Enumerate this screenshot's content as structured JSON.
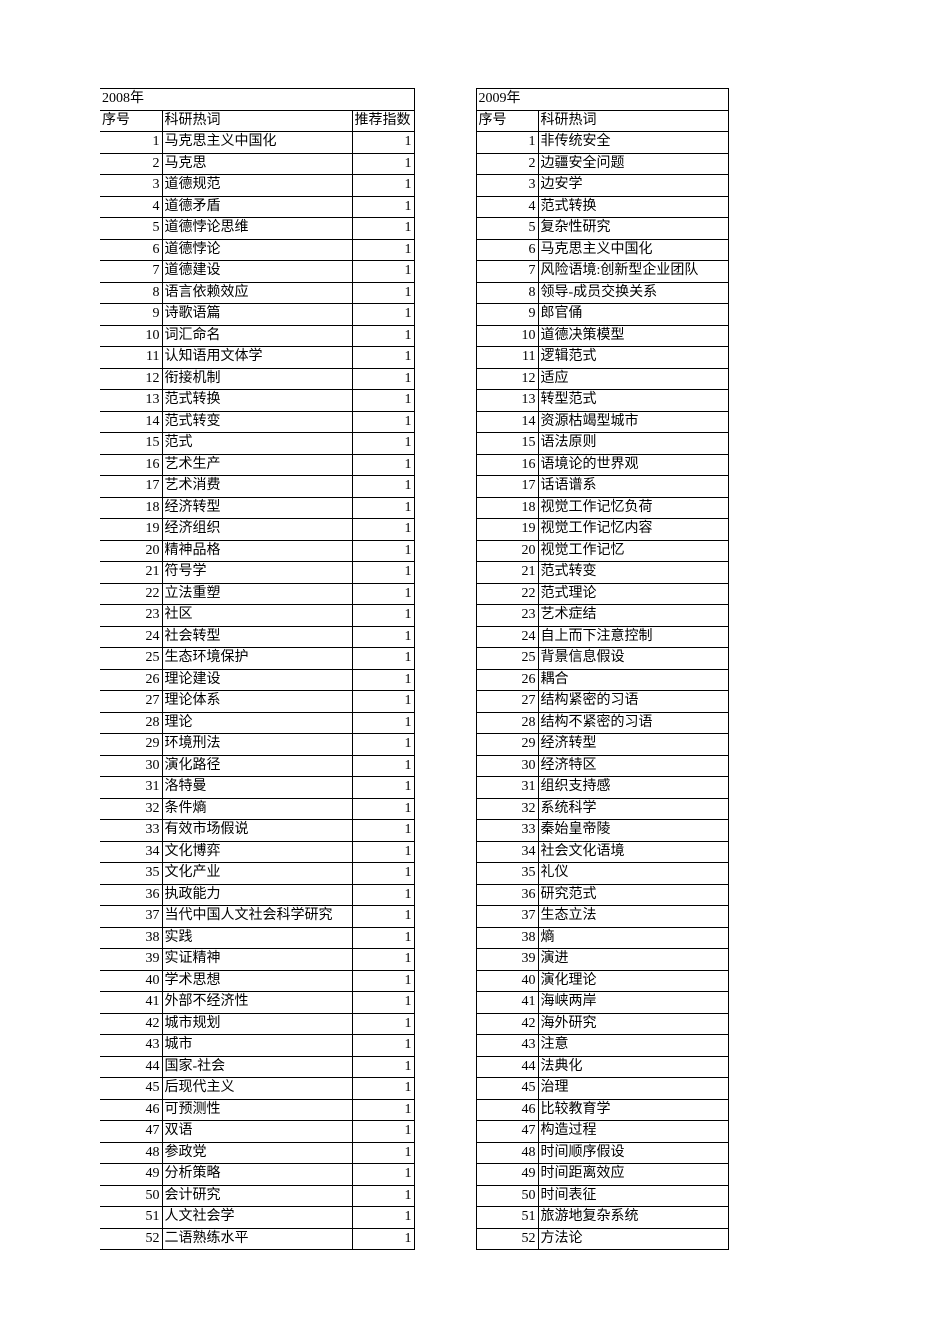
{
  "left": {
    "year": "2008年",
    "headers": {
      "seq": "序号",
      "term": "科研热词",
      "score": "推荐指数"
    },
    "rows": [
      {
        "n": "1",
        "t": "马克思主义中国化",
        "s": "1"
      },
      {
        "n": "2",
        "t": "马克思",
        "s": "1"
      },
      {
        "n": "3",
        "t": "道德规范",
        "s": "1"
      },
      {
        "n": "4",
        "t": "道德矛盾",
        "s": "1"
      },
      {
        "n": "5",
        "t": "道德悖论思维",
        "s": "1"
      },
      {
        "n": "6",
        "t": "道德悖论",
        "s": "1"
      },
      {
        "n": "7",
        "t": "道德建设",
        "s": "1"
      },
      {
        "n": "8",
        "t": "语言依赖效应",
        "s": "1"
      },
      {
        "n": "9",
        "t": "诗歌语篇",
        "s": "1"
      },
      {
        "n": "10",
        "t": "词汇命名",
        "s": "1"
      },
      {
        "n": "11",
        "t": "认知语用文体学",
        "s": "1"
      },
      {
        "n": "12",
        "t": "衔接机制",
        "s": "1"
      },
      {
        "n": "13",
        "t": "范式转换",
        "s": "1"
      },
      {
        "n": "14",
        "t": "范式转变",
        "s": "1"
      },
      {
        "n": "15",
        "t": "范式",
        "s": "1"
      },
      {
        "n": "16",
        "t": "艺术生产",
        "s": "1"
      },
      {
        "n": "17",
        "t": "艺术消费",
        "s": "1"
      },
      {
        "n": "18",
        "t": "经济转型",
        "s": "1"
      },
      {
        "n": "19",
        "t": "经济组织",
        "s": "1"
      },
      {
        "n": "20",
        "t": "精神品格",
        "s": "1"
      },
      {
        "n": "21",
        "t": "符号学",
        "s": "1"
      },
      {
        "n": "22",
        "t": "立法重塑",
        "s": "1"
      },
      {
        "n": "23",
        "t": "社区",
        "s": "1"
      },
      {
        "n": "24",
        "t": "社会转型",
        "s": "1"
      },
      {
        "n": "25",
        "t": "生态环境保护",
        "s": "1"
      },
      {
        "n": "26",
        "t": "理论建设",
        "s": "1"
      },
      {
        "n": "27",
        "t": "理论体系",
        "s": "1"
      },
      {
        "n": "28",
        "t": "理论",
        "s": "1"
      },
      {
        "n": "29",
        "t": "环境刑法",
        "s": "1"
      },
      {
        "n": "30",
        "t": "演化路径",
        "s": "1"
      },
      {
        "n": "31",
        "t": "洛特曼",
        "s": "1"
      },
      {
        "n": "32",
        "t": "条件熵",
        "s": "1"
      },
      {
        "n": "33",
        "t": "有效市场假说",
        "s": "1"
      },
      {
        "n": "34",
        "t": "文化博弈",
        "s": "1"
      },
      {
        "n": "35",
        "t": "文化产业",
        "s": "1"
      },
      {
        "n": "36",
        "t": "执政能力",
        "s": "1"
      },
      {
        "n": "37",
        "t": "当代中国人文社会科学研究",
        "s": "1"
      },
      {
        "n": "38",
        "t": "实践",
        "s": "1"
      },
      {
        "n": "39",
        "t": "实证精神",
        "s": "1"
      },
      {
        "n": "40",
        "t": "学术思想",
        "s": "1"
      },
      {
        "n": "41",
        "t": "外部不经济性",
        "s": "1"
      },
      {
        "n": "42",
        "t": "城市规划",
        "s": "1"
      },
      {
        "n": "43",
        "t": "城市",
        "s": "1"
      },
      {
        "n": "44",
        "t": "国家-社会",
        "s": "1"
      },
      {
        "n": "45",
        "t": "后现代主义",
        "s": "1"
      },
      {
        "n": "46",
        "t": "可预测性",
        "s": "1"
      },
      {
        "n": "47",
        "t": "双语",
        "s": "1"
      },
      {
        "n": "48",
        "t": "参政党",
        "s": "1"
      },
      {
        "n": "49",
        "t": "分析策略",
        "s": "1"
      },
      {
        "n": "50",
        "t": "会计研究",
        "s": "1"
      },
      {
        "n": "51",
        "t": "人文社会学",
        "s": "1"
      },
      {
        "n": "52",
        "t": "二语熟练水平",
        "s": "1"
      }
    ]
  },
  "right": {
    "year": "2009年",
    "headers": {
      "seq": "序号",
      "term": "科研热词"
    },
    "rows": [
      {
        "n": "1",
        "t": "非传统安全"
      },
      {
        "n": "2",
        "t": "边疆安全问题"
      },
      {
        "n": "3",
        "t": "边安学"
      },
      {
        "n": "4",
        "t": "范式转换"
      },
      {
        "n": "5",
        "t": "复杂性研究"
      },
      {
        "n": "6",
        "t": "马克思主义中国化"
      },
      {
        "n": "7",
        "t": "风险语境:创新型企业团队"
      },
      {
        "n": "8",
        "t": "领导-成员交换关系"
      },
      {
        "n": "9",
        "t": "郎官俑"
      },
      {
        "n": "10",
        "t": "道德决策模型"
      },
      {
        "n": "11",
        "t": "逻辑范式"
      },
      {
        "n": "12",
        "t": "适应"
      },
      {
        "n": "13",
        "t": "转型范式"
      },
      {
        "n": "14",
        "t": "资源枯竭型城市"
      },
      {
        "n": "15",
        "t": "语法原则"
      },
      {
        "n": "16",
        "t": "语境论的世界观"
      },
      {
        "n": "17",
        "t": "话语谱系"
      },
      {
        "n": "18",
        "t": "视觉工作记忆负荷"
      },
      {
        "n": "19",
        "t": "视觉工作记忆内容"
      },
      {
        "n": "20",
        "t": "视觉工作记忆"
      },
      {
        "n": "21",
        "t": "范式转变"
      },
      {
        "n": "22",
        "t": "范式理论"
      },
      {
        "n": "23",
        "t": "艺术症结"
      },
      {
        "n": "24",
        "t": "自上而下注意控制"
      },
      {
        "n": "25",
        "t": "背景信息假设"
      },
      {
        "n": "26",
        "t": "耦合"
      },
      {
        "n": "27",
        "t": "结构紧密的习语"
      },
      {
        "n": "28",
        "t": "结构不紧密的习语"
      },
      {
        "n": "29",
        "t": "经济转型"
      },
      {
        "n": "30",
        "t": "经济特区"
      },
      {
        "n": "31",
        "t": "组织支持感"
      },
      {
        "n": "32",
        "t": "系统科学"
      },
      {
        "n": "33",
        "t": "秦始皇帝陵"
      },
      {
        "n": "34",
        "t": "社会文化语境"
      },
      {
        "n": "35",
        "t": "礼仪"
      },
      {
        "n": "36",
        "t": "研究范式"
      },
      {
        "n": "37",
        "t": "生态立法"
      },
      {
        "n": "38",
        "t": "熵"
      },
      {
        "n": "39",
        "t": "演进"
      },
      {
        "n": "40",
        "t": "演化理论"
      },
      {
        "n": "41",
        "t": "海峡两岸"
      },
      {
        "n": "42",
        "t": "海外研究"
      },
      {
        "n": "43",
        "t": "注意"
      },
      {
        "n": "44",
        "t": "法典化"
      },
      {
        "n": "45",
        "t": "治理"
      },
      {
        "n": "46",
        "t": "比较教育学"
      },
      {
        "n": "47",
        "t": "构造过程"
      },
      {
        "n": "48",
        "t": "时间顺序假设"
      },
      {
        "n": "49",
        "t": "时间距离效应"
      },
      {
        "n": "50",
        "t": "时间表征"
      },
      {
        "n": "51",
        "t": "旅游地复杂系统"
      },
      {
        "n": "52",
        "t": "方法论"
      }
    ]
  }
}
